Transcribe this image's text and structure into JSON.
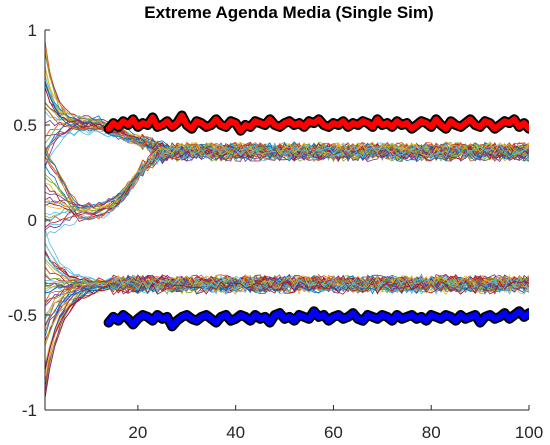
{
  "chart_data": {
    "type": "line",
    "title": "Extreme Agenda Media (Single Sim)",
    "xlabel": "",
    "ylabel": "",
    "xlim": [
      1,
      100
    ],
    "ylim": [
      -1,
      1
    ],
    "x_ticks": [
      20,
      40,
      60,
      80,
      100
    ],
    "y_ticks": [
      -1,
      -0.5,
      0,
      0.5,
      1
    ],
    "x_tick_labels": [
      "20",
      "40",
      "60",
      "80",
      "100"
    ],
    "y_tick_labels": [
      "-1",
      "-0.5",
      "0",
      "0.5",
      "1"
    ],
    "grid": false,
    "legend": "none",
    "media_start_step": 14,
    "series": [
      {
        "role": "extreme media (positive)",
        "color": "#ff0000",
        "x": [
          14,
          15,
          16,
          17,
          18,
          19,
          20,
          21,
          22,
          23,
          24,
          25,
          26,
          27,
          28,
          29,
          30,
          31,
          32,
          33,
          34,
          35,
          36,
          37,
          38,
          39,
          40,
          41,
          42,
          43,
          44,
          45,
          46,
          47,
          48,
          49,
          50,
          51,
          52,
          53,
          54,
          55,
          56,
          57,
          58,
          59,
          60,
          61,
          62,
          63,
          64,
          65,
          66,
          67,
          68,
          69,
          70,
          71,
          72,
          73,
          74,
          75,
          76,
          77,
          78,
          79,
          80,
          81,
          82,
          83,
          84,
          85,
          86,
          87,
          88,
          89,
          90,
          91,
          92,
          93,
          94,
          95,
          96,
          97,
          98,
          99,
          100
        ],
        "values": [
          0.48,
          0.51,
          0.49,
          0.52,
          0.5,
          0.53,
          0.49,
          0.51,
          0.5,
          0.54,
          0.49,
          0.5,
          0.52,
          0.49,
          0.51,
          0.55,
          0.5,
          0.48,
          0.52,
          0.51,
          0.49,
          0.5,
          0.53,
          0.5,
          0.49,
          0.52,
          0.51,
          0.47,
          0.5,
          0.49,
          0.52,
          0.51,
          0.5,
          0.53,
          0.5,
          0.49,
          0.51,
          0.52,
          0.5,
          0.51,
          0.49,
          0.52,
          0.51,
          0.53,
          0.5,
          0.49,
          0.51,
          0.5,
          0.52,
          0.49,
          0.51,
          0.5,
          0.52,
          0.51,
          0.49,
          0.53,
          0.5,
          0.51,
          0.49,
          0.52,
          0.5,
          0.51,
          0.48,
          0.5,
          0.52,
          0.51,
          0.49,
          0.53,
          0.5,
          0.48,
          0.52,
          0.5,
          0.49,
          0.51,
          0.53,
          0.5,
          0.49,
          0.52,
          0.51,
          0.48,
          0.5,
          0.52,
          0.51,
          0.53,
          0.49,
          0.51,
          0.48
        ]
      },
      {
        "role": "extreme media (negative)",
        "color": "#0000ff",
        "x": [
          14,
          15,
          16,
          17,
          18,
          19,
          20,
          21,
          22,
          23,
          24,
          25,
          26,
          27,
          28,
          29,
          30,
          31,
          32,
          33,
          34,
          35,
          36,
          37,
          38,
          39,
          40,
          41,
          42,
          43,
          44,
          45,
          46,
          47,
          48,
          49,
          50,
          51,
          52,
          53,
          54,
          55,
          56,
          57,
          58,
          59,
          60,
          61,
          62,
          63,
          64,
          65,
          66,
          67,
          68,
          69,
          70,
          71,
          72,
          73,
          74,
          75,
          76,
          77,
          78,
          79,
          80,
          81,
          82,
          83,
          84,
          85,
          86,
          87,
          88,
          89,
          90,
          91,
          92,
          93,
          94,
          95,
          96,
          97,
          98,
          99,
          100
        ],
        "values": [
          -0.54,
          -0.51,
          -0.53,
          -0.5,
          -0.52,
          -0.55,
          -0.52,
          -0.5,
          -0.51,
          -0.53,
          -0.5,
          -0.52,
          -0.51,
          -0.56,
          -0.53,
          -0.51,
          -0.5,
          -0.52,
          -0.53,
          -0.51,
          -0.5,
          -0.52,
          -0.54,
          -0.51,
          -0.5,
          -0.53,
          -0.52,
          -0.5,
          -0.51,
          -0.53,
          -0.5,
          -0.52,
          -0.51,
          -0.54,
          -0.5,
          -0.49,
          -0.52,
          -0.51,
          -0.53,
          -0.5,
          -0.51,
          -0.52,
          -0.48,
          -0.51,
          -0.5,
          -0.53,
          -0.51,
          -0.5,
          -0.52,
          -0.51,
          -0.49,
          -0.52,
          -0.53,
          -0.5,
          -0.51,
          -0.52,
          -0.5,
          -0.51,
          -0.53,
          -0.5,
          -0.52,
          -0.51,
          -0.5,
          -0.52,
          -0.51,
          -0.53,
          -0.5,
          -0.51,
          -0.52,
          -0.5,
          -0.51,
          -0.53,
          -0.5,
          -0.52,
          -0.51,
          -0.5,
          -0.54,
          -0.51,
          -0.5,
          -0.52,
          -0.51,
          -0.49,
          -0.52,
          -0.5,
          -0.48,
          -0.51,
          -0.49
        ]
      }
    ],
    "agent_groups": [
      {
        "role": "upper cluster, initially positive",
        "start_range": [
          0.25,
          0.95
        ],
        "mid_value_at_x12": 0.5,
        "final_value": 0.36,
        "count": 30
      },
      {
        "role": "upper cluster, initially near zero",
        "start_range": [
          -0.1,
          0.4
        ],
        "min_value_at_x8": 0.04,
        "final_value": 0.36,
        "count": 25
      },
      {
        "role": "lower cluster",
        "start_range": [
          -0.95,
          -0.05
        ],
        "final_value": -0.34,
        "count": 50
      }
    ]
  }
}
